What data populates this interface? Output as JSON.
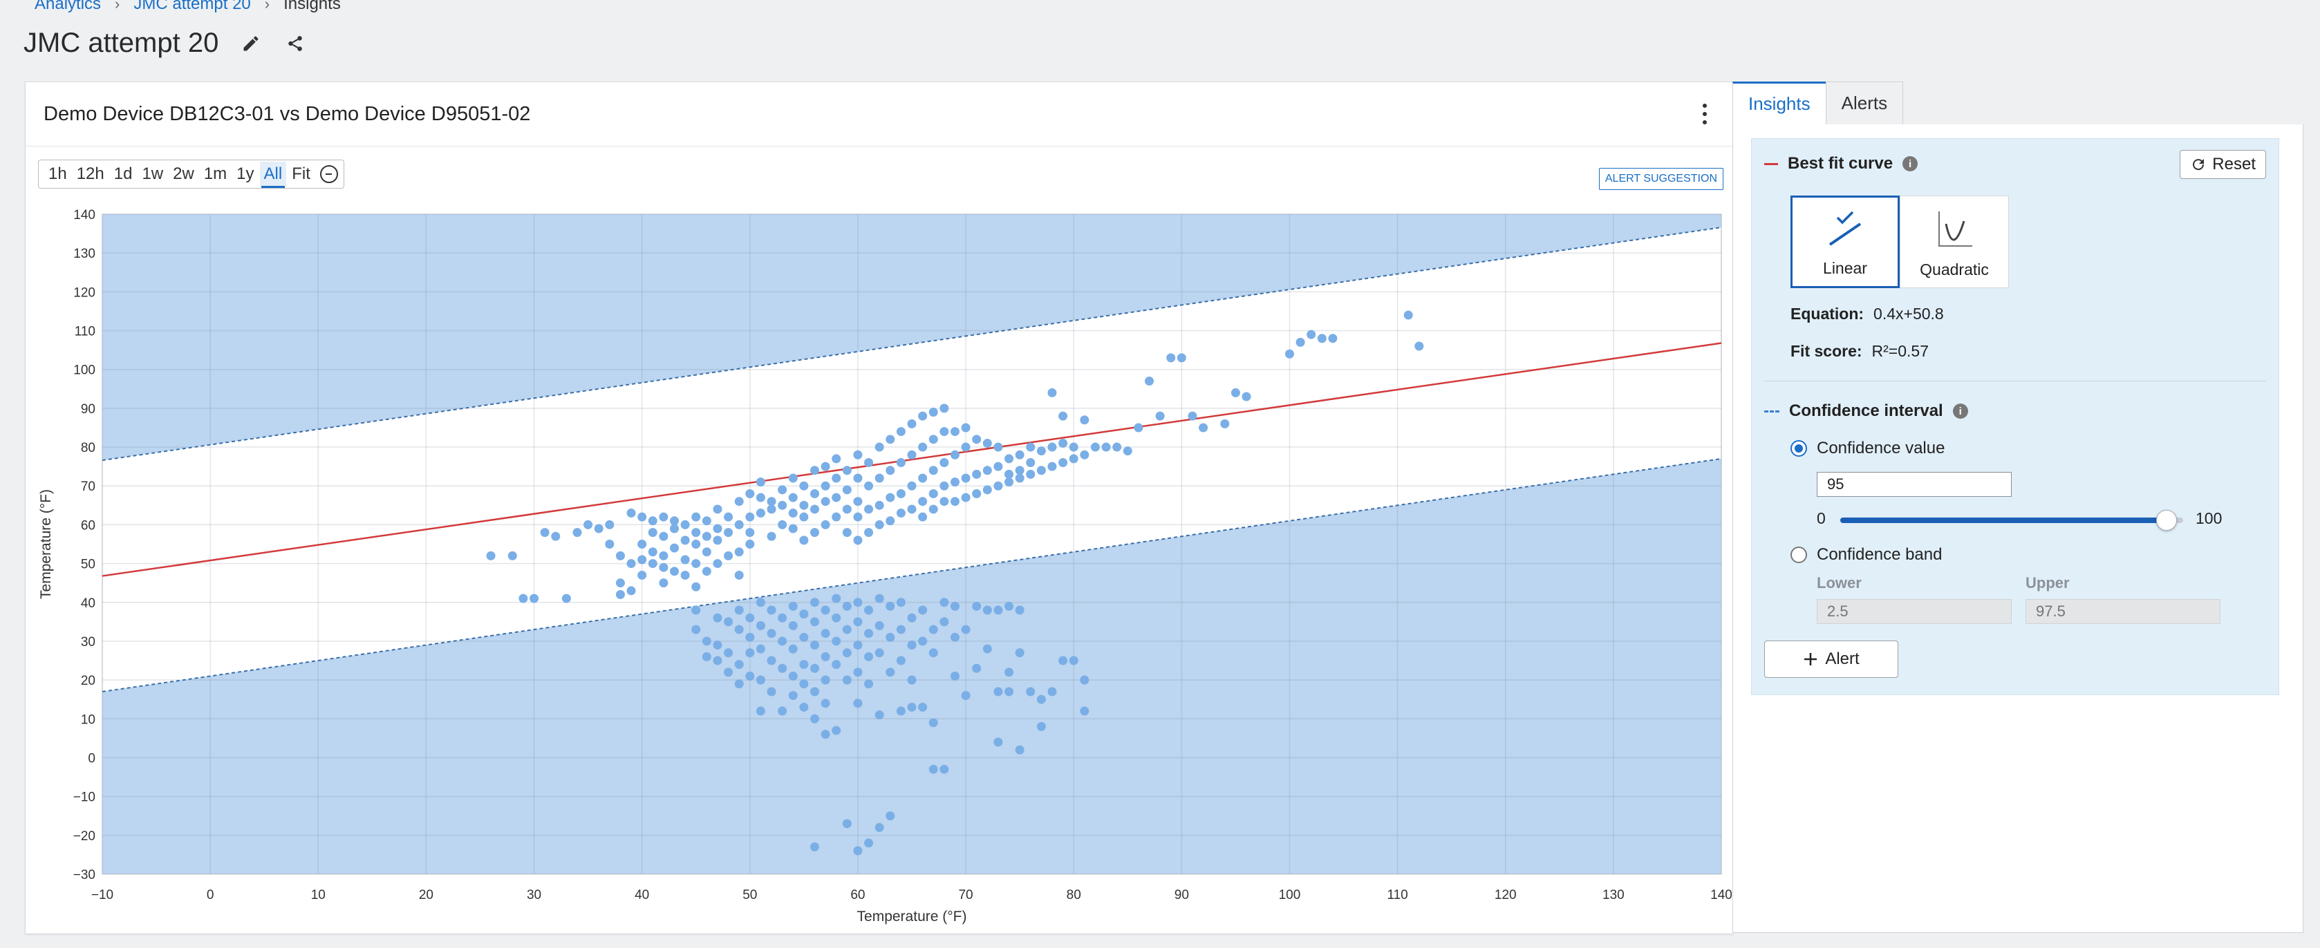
{
  "breadcrumb": {
    "items": [
      "Analytics",
      "JMC attempt 20",
      "Insights"
    ]
  },
  "page": {
    "title": "JMC attempt 20"
  },
  "chart_card": {
    "title": "Demo Device DB12C3-01 vs Demo Device D95051-02",
    "time_ranges": [
      "1h",
      "12h",
      "1d",
      "1w",
      "2w",
      "1m",
      "1y",
      "All",
      "Fit"
    ],
    "active_range": "All",
    "alert_suggestion": "ALERT SUGGESTION"
  },
  "tabs": [
    "Insights",
    "Alerts"
  ],
  "active_tab": "Insights",
  "insights": {
    "best_fit_label": "Best fit curve",
    "reset_label": "Reset",
    "fit_options": [
      "Linear",
      "Quadratic"
    ],
    "selected_fit": "Linear",
    "equation_label": "Equation:",
    "equation_value": "0.4x+50.8",
    "fit_score_label": "Fit score:",
    "fit_score_value": "R²=0.57",
    "confidence_interval_label": "Confidence interval",
    "confidence_value_label": "Confidence value",
    "confidence_value": "95",
    "slider_min": "0",
    "slider_max": "100",
    "slider_value": 95,
    "confidence_band_label": "Confidence band",
    "lower_label": "Lower",
    "upper_label": "Upper",
    "lower_placeholder": "2.5",
    "upper_placeholder": "97.5",
    "alert_button": "Alert"
  },
  "colors": {
    "accent": "#1a6ec7",
    "band_fill": "#b8d3ef",
    "points": "#7aaee6",
    "fit_line": "#d33a3a"
  },
  "chart_data": {
    "type": "scatter",
    "xlabel": "Temperature (°F)",
    "ylabel": "Temperature (°F)",
    "xlim": [
      -10,
      140
    ],
    "ylim": [
      -30,
      140
    ],
    "x_ticks": [
      -10,
      0,
      10,
      20,
      30,
      40,
      50,
      60,
      70,
      80,
      90,
      100,
      110,
      120,
      130,
      140
    ],
    "y_ticks": [
      -30,
      -20,
      -10,
      0,
      10,
      20,
      30,
      40,
      50,
      60,
      70,
      80,
      90,
      100,
      110,
      120,
      130,
      140
    ],
    "grid": true,
    "fit_line": {
      "slope": 0.4,
      "intercept": 50.8
    },
    "confidence_band": {
      "upper_intercept": 80.6,
      "lower_intercept": 21.0,
      "slope": 0.4
    },
    "points": [
      [
        26,
        52
      ],
      [
        28,
        52
      ],
      [
        29,
        41
      ],
      [
        30,
        41
      ],
      [
        31,
        58
      ],
      [
        32,
        57
      ],
      [
        33,
        41
      ],
      [
        34,
        58
      ],
      [
        35,
        60
      ],
      [
        36,
        59
      ],
      [
        37,
        55
      ],
      [
        37,
        60
      ],
      [
        38,
        52
      ],
      [
        38,
        45
      ],
      [
        38,
        42
      ],
      [
        39,
        50
      ],
      [
        39,
        43
      ],
      [
        39,
        63
      ],
      [
        40,
        47
      ],
      [
        40,
        51
      ],
      [
        40,
        55
      ],
      [
        40,
        62
      ],
      [
        41,
        50
      ],
      [
        41,
        53
      ],
      [
        41,
        58
      ],
      [
        41,
        61
      ],
      [
        42,
        49
      ],
      [
        42,
        45
      ],
      [
        42,
        52
      ],
      [
        42,
        57
      ],
      [
        42,
        62
      ],
      [
        43,
        48
      ],
      [
        43,
        54
      ],
      [
        43,
        59
      ],
      [
        43,
        61
      ],
      [
        44,
        47
      ],
      [
        44,
        51
      ],
      [
        44,
        56
      ],
      [
        44,
        60
      ],
      [
        45,
        50
      ],
      [
        45,
        55
      ],
      [
        45,
        58
      ],
      [
        45,
        44
      ],
      [
        45,
        62
      ],
      [
        46,
        53
      ],
      [
        46,
        48
      ],
      [
        46,
        57
      ],
      [
        46,
        61
      ],
      [
        47,
        50
      ],
      [
        47,
        56
      ],
      [
        47,
        59
      ],
      [
        47,
        64
      ],
      [
        48,
        52
      ],
      [
        48,
        62
      ],
      [
        48,
        58
      ],
      [
        49,
        47
      ],
      [
        49,
        53
      ],
      [
        49,
        60
      ],
      [
        49,
        66
      ],
      [
        50,
        55
      ],
      [
        50,
        58
      ],
      [
        50,
        62
      ],
      [
        50,
        68
      ],
      [
        51,
        63
      ],
      [
        51,
        67
      ],
      [
        51,
        71
      ],
      [
        52,
        57
      ],
      [
        52,
        64
      ],
      [
        52,
        66
      ],
      [
        53,
        60
      ],
      [
        53,
        65
      ],
      [
        53,
        69
      ],
      [
        54,
        59
      ],
      [
        54,
        63
      ],
      [
        54,
        67
      ],
      [
        54,
        72
      ],
      [
        55,
        56
      ],
      [
        55,
        62
      ],
      [
        55,
        65
      ],
      [
        55,
        70
      ],
      [
        56,
        58
      ],
      [
        56,
        64
      ],
      [
        56,
        68
      ],
      [
        56,
        74
      ],
      [
        57,
        60
      ],
      [
        57,
        66
      ],
      [
        57,
        70
      ],
      [
        57,
        75
      ],
      [
        58,
        62
      ],
      [
        58,
        67
      ],
      [
        58,
        72
      ],
      [
        58,
        77
      ],
      [
        59,
        58
      ],
      [
        59,
        64
      ],
      [
        59,
        69
      ],
      [
        59,
        74
      ],
      [
        60,
        56
      ],
      [
        60,
        62
      ],
      [
        60,
        66
      ],
      [
        60,
        72
      ],
      [
        60,
        78
      ],
      [
        61,
        58
      ],
      [
        61,
        64
      ],
      [
        61,
        70
      ],
      [
        61,
        76
      ],
      [
        62,
        60
      ],
      [
        62,
        65
      ],
      [
        62,
        72
      ],
      [
        62,
        80
      ],
      [
        63,
        61
      ],
      [
        63,
        67
      ],
      [
        63,
        74
      ],
      [
        63,
        82
      ],
      [
        64,
        63
      ],
      [
        64,
        68
      ],
      [
        64,
        76
      ],
      [
        64,
        84
      ],
      [
        65,
        64
      ],
      [
        65,
        70
      ],
      [
        65,
        78
      ],
      [
        65,
        86
      ],
      [
        66,
        62
      ],
      [
        66,
        66
      ],
      [
        66,
        72
      ],
      [
        66,
        80
      ],
      [
        66,
        88
      ],
      [
        67,
        64
      ],
      [
        67,
        68
      ],
      [
        67,
        74
      ],
      [
        67,
        82
      ],
      [
        67,
        89
      ],
      [
        68,
        66
      ],
      [
        68,
        70
      ],
      [
        68,
        76
      ],
      [
        68,
        84
      ],
      [
        68,
        90
      ],
      [
        69,
        66
      ],
      [
        69,
        71
      ],
      [
        69,
        78
      ],
      [
        69,
        84
      ],
      [
        70,
        67
      ],
      [
        70,
        72
      ],
      [
        70,
        80
      ],
      [
        70,
        85
      ],
      [
        71,
        68
      ],
      [
        71,
        73
      ],
      [
        71,
        82
      ],
      [
        72,
        69
      ],
      [
        72,
        74
      ],
      [
        72,
        81
      ],
      [
        73,
        70
      ],
      [
        73,
        75
      ],
      [
        73,
        80
      ],
      [
        74,
        71
      ],
      [
        74,
        73
      ],
      [
        74,
        77
      ],
      [
        75,
        72
      ],
      [
        75,
        74
      ],
      [
        75,
        78
      ],
      [
        76,
        73
      ],
      [
        76,
        76
      ],
      [
        76,
        80
      ],
      [
        77,
        74
      ],
      [
        77,
        79
      ],
      [
        78,
        75
      ],
      [
        78,
        80
      ],
      [
        78,
        94
      ],
      [
        79,
        76
      ],
      [
        79,
        81
      ],
      [
        79,
        88
      ],
      [
        80,
        77
      ],
      [
        80,
        80
      ],
      [
        81,
        78
      ],
      [
        81,
        87
      ],
      [
        82,
        80
      ],
      [
        83,
        80
      ],
      [
        84,
        80
      ],
      [
        85,
        79
      ],
      [
        86,
        85
      ],
      [
        87,
        97
      ],
      [
        88,
        88
      ],
      [
        89,
        103
      ],
      [
        90,
        103
      ],
      [
        91,
        88
      ],
      [
        92,
        85
      ],
      [
        94,
        86
      ],
      [
        95,
        94
      ],
      [
        96,
        93
      ],
      [
        100,
        104
      ],
      [
        101,
        107
      ],
      [
        102,
        109
      ],
      [
        103,
        108
      ],
      [
        104,
        108
      ],
      [
        111,
        114
      ],
      [
        112,
        106
      ],
      [
        45,
        38
      ],
      [
        45,
        33
      ],
      [
        46,
        30
      ],
      [
        46,
        26
      ],
      [
        47,
        29
      ],
      [
        47,
        25
      ],
      [
        47,
        36
      ],
      [
        48,
        35
      ],
      [
        48,
        27
      ],
      [
        48,
        22
      ],
      [
        49,
        38
      ],
      [
        49,
        33
      ],
      [
        49,
        24
      ],
      [
        49,
        19
      ],
      [
        50,
        36
      ],
      [
        50,
        31
      ],
      [
        50,
        27
      ],
      [
        50,
        21
      ],
      [
        51,
        40
      ],
      [
        51,
        34
      ],
      [
        51,
        28
      ],
      [
        51,
        20
      ],
      [
        51,
        12
      ],
      [
        52,
        38
      ],
      [
        52,
        32
      ],
      [
        52,
        25
      ],
      [
        52,
        17
      ],
      [
        53,
        36
      ],
      [
        53,
        30
      ],
      [
        53,
        23
      ],
      [
        53,
        12
      ],
      [
        54,
        39
      ],
      [
        54,
        34
      ],
      [
        54,
        28
      ],
      [
        54,
        21
      ],
      [
        54,
        16
      ],
      [
        55,
        37
      ],
      [
        55,
        31
      ],
      [
        55,
        24
      ],
      [
        55,
        19
      ],
      [
        55,
        13
      ],
      [
        56,
        40
      ],
      [
        56,
        35
      ],
      [
        56,
        29
      ],
      [
        56,
        23
      ],
      [
        56,
        17
      ],
      [
        56,
        10
      ],
      [
        56,
        -23
      ],
      [
        57,
        38
      ],
      [
        57,
        32
      ],
      [
        57,
        26
      ],
      [
        57,
        20
      ],
      [
        57,
        14
      ],
      [
        57,
        6
      ],
      [
        58,
        41
      ],
      [
        58,
        36
      ],
      [
        58,
        30
      ],
      [
        58,
        24
      ],
      [
        58,
        7
      ],
      [
        59,
        39
      ],
      [
        59,
        33
      ],
      [
        59,
        27
      ],
      [
        59,
        20
      ],
      [
        59,
        -17
      ],
      [
        60,
        40
      ],
      [
        60,
        35
      ],
      [
        60,
        29
      ],
      [
        60,
        22
      ],
      [
        60,
        14
      ],
      [
        60,
        -24
      ],
      [
        61,
        38
      ],
      [
        61,
        32
      ],
      [
        61,
        26
      ],
      [
        61,
        19
      ],
      [
        61,
        -22
      ],
      [
        62,
        41
      ],
      [
        62,
        34
      ],
      [
        62,
        27
      ],
      [
        62,
        11
      ],
      [
        62,
        -18
      ],
      [
        63,
        39
      ],
      [
        63,
        31
      ],
      [
        63,
        22
      ],
      [
        63,
        -15
      ],
      [
        64,
        40
      ],
      [
        64,
        33
      ],
      [
        64,
        25
      ],
      [
        64,
        12
      ],
      [
        65,
        36
      ],
      [
        65,
        29
      ],
      [
        65,
        20
      ],
      [
        65,
        13
      ],
      [
        66,
        38
      ],
      [
        66,
        30
      ],
      [
        66,
        13
      ],
      [
        67,
        33
      ],
      [
        67,
        27
      ],
      [
        67,
        9
      ],
      [
        67,
        -3
      ],
      [
        68,
        40
      ],
      [
        68,
        35
      ],
      [
        68,
        -3
      ],
      [
        69,
        39
      ],
      [
        69,
        31
      ],
      [
        69,
        21
      ],
      [
        70,
        33
      ],
      [
        70,
        16
      ],
      [
        71,
        39
      ],
      [
        71,
        23
      ],
      [
        72,
        38
      ],
      [
        72,
        28
      ],
      [
        73,
        38
      ],
      [
        73,
        17
      ],
      [
        73,
        4
      ],
      [
        74,
        39
      ],
      [
        74,
        22
      ],
      [
        74,
        17
      ],
      [
        75,
        38
      ],
      [
        75,
        27
      ],
      [
        75,
        2
      ],
      [
        76,
        17
      ],
      [
        77,
        8
      ],
      [
        77,
        15
      ],
      [
        78,
        17
      ],
      [
        79,
        25
      ],
      [
        80,
        25
      ],
      [
        81,
        20
      ],
      [
        81,
        12
      ]
    ]
  }
}
